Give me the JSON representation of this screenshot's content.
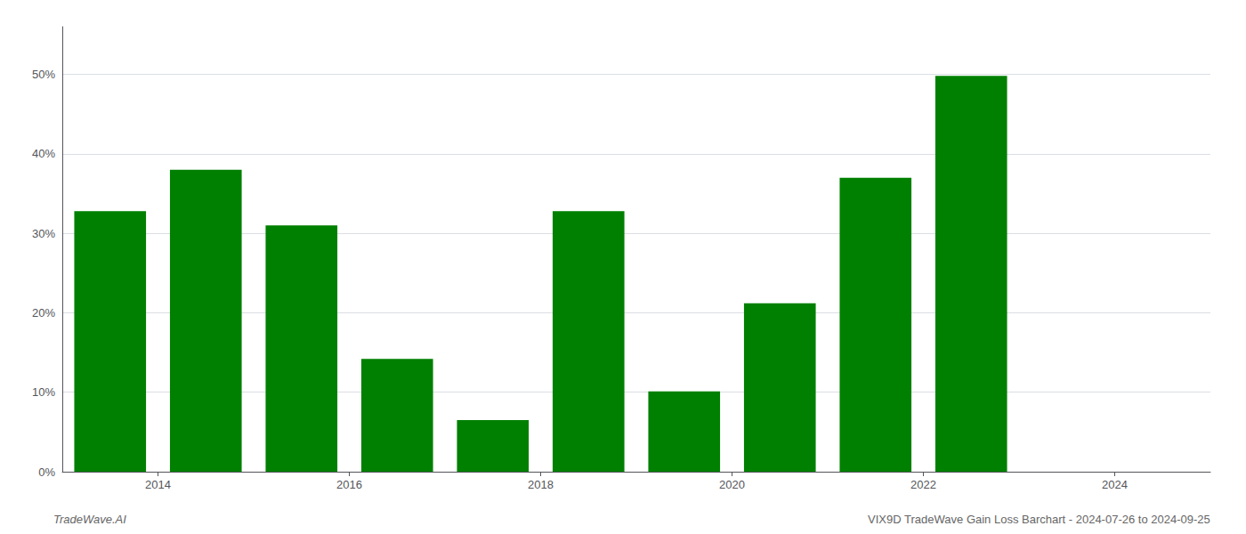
{
  "chart_data": {
    "type": "bar",
    "x": [
      2013.5,
      2014.5,
      2015.5,
      2016.5,
      2017.5,
      2018.5,
      2019.5,
      2020.5,
      2021.5,
      2022.5
    ],
    "values": [
      0.328,
      0.38,
      0.31,
      0.142,
      0.065,
      0.328,
      0.101,
      0.212,
      0.37,
      0.498
    ],
    "color": "#008000",
    "xlim": [
      2013.0,
      2025.0
    ],
    "xticks": [
      2014,
      2016,
      2018,
      2020,
      2022,
      2024
    ],
    "ylim": [
      0,
      0.56
    ],
    "yticks": [
      {
        "value": 0.0,
        "label": "0%"
      },
      {
        "value": 0.1,
        "label": "10%"
      },
      {
        "value": 0.2,
        "label": "20%"
      },
      {
        "value": 0.3,
        "label": "30%"
      },
      {
        "value": 0.4,
        "label": "40%"
      },
      {
        "value": 0.5,
        "label": "50%"
      }
    ],
    "grid": true,
    "annotations": [
      "TradeWave.AI",
      "VIX9D TradeWave Gain Loss Barchart - 2024-07-26 to 2024-09-25"
    ]
  }
}
